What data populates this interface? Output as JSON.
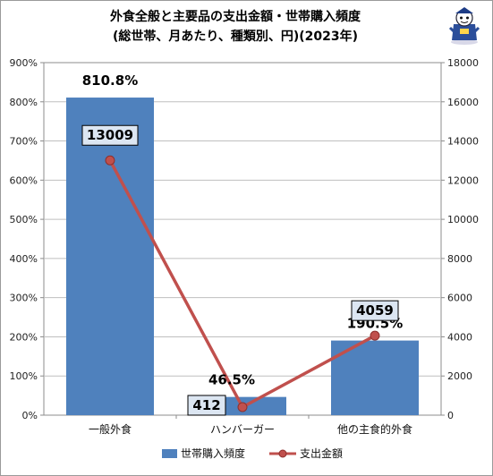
{
  "chart_data": {
    "type": "bar",
    "title": "外食全般と主要品の支出金額・世帯購入頻度",
    "subtitle": "(総世帯、月あたり、種類別、円)(2023年)",
    "categories": [
      "一般外食",
      "ハンバーガー",
      "他の主食的外食"
    ],
    "series": [
      {
        "name": "世帯購入頻度",
        "type": "bar",
        "axis": "left",
        "values": [
          810.8,
          46.5,
          190.5
        ],
        "labels": [
          "810.8%",
          "46.5%",
          "190.5%"
        ],
        "color": "#4f81bd"
      },
      {
        "name": "支出金額",
        "type": "line",
        "axis": "right",
        "values": [
          13009,
          412,
          4059
        ],
        "labels": [
          "13009",
          "412",
          "4059"
        ],
        "color": "#c0504d"
      }
    ],
    "left_axis": {
      "ylim": [
        0,
        900
      ],
      "ticks": [
        "0%",
        "100%",
        "200%",
        "300%",
        "400%",
        "500%",
        "600%",
        "700%",
        "800%",
        "900%"
      ]
    },
    "right_axis": {
      "ylim": [
        0,
        18000
      ],
      "ticks": [
        "0",
        "2000",
        "4000",
        "6000",
        "8000",
        "10000",
        "12000",
        "14000",
        "16000",
        "18000"
      ]
    },
    "grid": true,
    "legend_position": "bottom"
  },
  "logo": {
    "name": "mascot-icon"
  }
}
